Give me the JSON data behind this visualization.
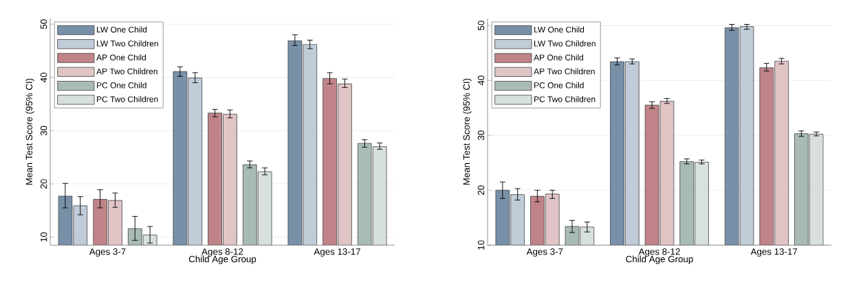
{
  "chart_data": [
    {
      "type": "bar",
      "xlabel": "Child Age Group",
      "ylabel": "Mean Test Score (95% CI)",
      "categories": [
        "Ages 3-7",
        "Ages 8-12",
        "Ages 13-17"
      ],
      "ylim": [
        8.5,
        51.1
      ],
      "yticks": [
        10,
        20,
        30,
        40,
        50
      ],
      "grid": "y",
      "legend": "top left",
      "series": [
        {
          "name": "LW One Child",
          "color": "#7890a8",
          "values": [
            17.7,
            41.1,
            46.9
          ],
          "errors": [
            [
              15.5,
              20.1
            ],
            [
              40.2,
              42.0
            ],
            [
              46.0,
              48.0
            ]
          ]
        },
        {
          "name": "LW Two Children",
          "color": "#c0ccd8",
          "values": [
            15.9,
            39.9,
            46.2
          ],
          "errors": [
            [
              14.2,
              17.6
            ],
            [
              39.0,
              40.9
            ],
            [
              45.4,
              47.0
            ]
          ]
        },
        {
          "name": "AP One Child",
          "color": "#c08488",
          "values": [
            17.1,
            33.3,
            39.8
          ],
          "errors": [
            [
              15.5,
              18.9
            ],
            [
              32.6,
              34.0
            ],
            [
              38.8,
              40.9
            ]
          ]
        },
        {
          "name": "AP Two Children",
          "color": "#e0c4c6",
          "values": [
            16.9,
            33.1,
            38.8
          ],
          "errors": [
            [
              15.6,
              18.3
            ],
            [
              32.4,
              33.9
            ],
            [
              38.1,
              39.7
            ]
          ]
        },
        {
          "name": "PC One Child",
          "color": "#a8bcb4",
          "values": [
            11.6,
            23.6,
            27.6
          ],
          "errors": [
            [
              9.4,
              13.9
            ],
            [
              23.0,
              24.3
            ],
            [
              26.9,
              28.3
            ]
          ]
        },
        {
          "name": "PC Two Children",
          "color": "#d8e0dc",
          "values": [
            10.4,
            22.3,
            27.0
          ],
          "errors": [
            [
              8.9,
              12.0
            ],
            [
              21.7,
              23.0
            ],
            [
              26.5,
              27.7
            ]
          ]
        }
      ]
    },
    {
      "type": "bar",
      "xlabel": "Child Age Group",
      "ylabel": "Mean Test Score (95% CI)",
      "categories": [
        "Ages 3-7",
        "Ages 8-12",
        "Ages 13-17"
      ],
      "ylim": [
        10,
        51.3
      ],
      "yticks": [
        10,
        20,
        30,
        40,
        50
      ],
      "grid": "y",
      "legend": "top left",
      "series": [
        {
          "name": "LW One Child",
          "color": "#7890a8",
          "values": [
            20.0,
            43.4,
            49.6
          ],
          "errors": [
            [
              18.5,
              21.5
            ],
            [
              42.8,
              44.1
            ],
            [
              49.1,
              50.2
            ]
          ]
        },
        {
          "name": "LW Two Children",
          "color": "#c0ccd8",
          "values": [
            19.2,
            43.4,
            49.8
          ],
          "errors": [
            [
              18.2,
              20.3
            ],
            [
              43.0,
              43.9
            ],
            [
              49.3,
              50.2
            ]
          ]
        },
        {
          "name": "AP One Child",
          "color": "#c08488",
          "values": [
            18.9,
            35.5,
            42.3
          ],
          "errors": [
            [
              17.9,
              20.0
            ],
            [
              34.9,
              36.1
            ],
            [
              41.7,
              43.1
            ]
          ]
        },
        {
          "name": "AP Two Children",
          "color": "#e0c4c6",
          "values": [
            19.3,
            36.2,
            43.5
          ],
          "errors": [
            [
              18.5,
              20.0
            ],
            [
              35.8,
              36.7
            ],
            [
              43.0,
              44.0
            ]
          ]
        },
        {
          "name": "PC One Child",
          "color": "#a8bcb4",
          "values": [
            13.4,
            25.2,
            30.3
          ],
          "errors": [
            [
              12.3,
              14.5
            ],
            [
              24.8,
              25.7
            ],
            [
              29.8,
              30.8
            ]
          ]
        },
        {
          "name": "PC Two Children",
          "color": "#d8e0dc",
          "values": [
            13.3,
            25.1,
            30.2
          ],
          "errors": [
            [
              12.4,
              14.2
            ],
            [
              24.8,
              25.5
            ],
            [
              29.9,
              30.6
            ]
          ]
        }
      ]
    }
  ]
}
